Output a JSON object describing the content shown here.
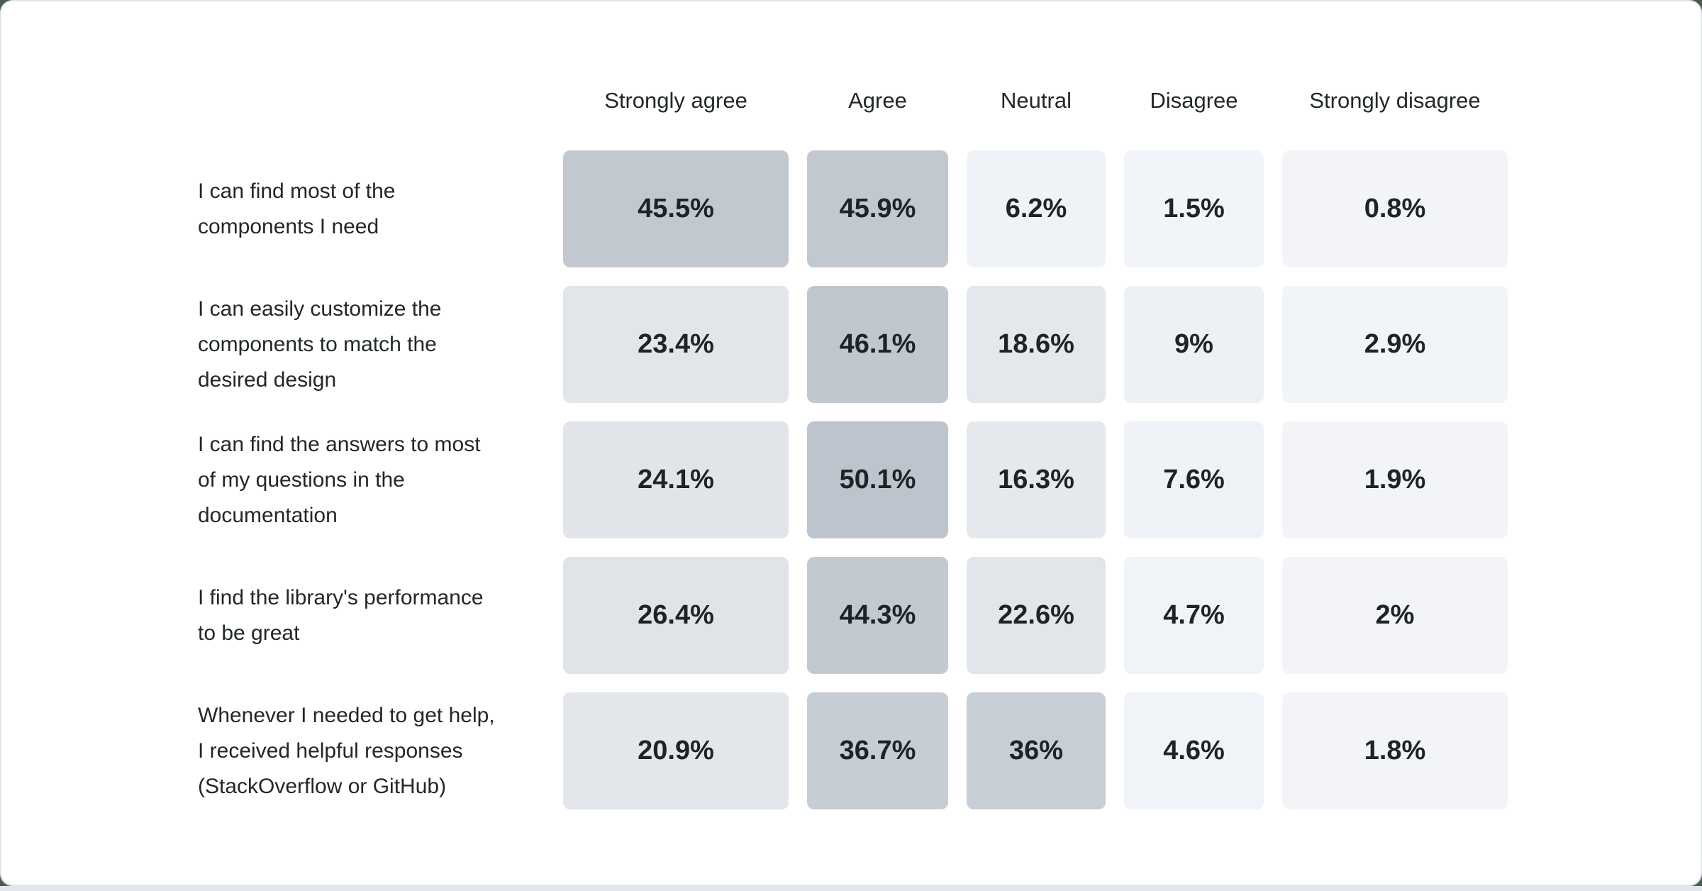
{
  "page": {
    "background_color": "#4a5c50",
    "card_background": "#ffffff",
    "card_border_color": "#e2e5e9",
    "bottom_band_color": "#e3e6ea",
    "text_color": "#21272a",
    "value_text_color": "#1e2326"
  },
  "chart_data": {
    "type": "heatmap",
    "title": "",
    "legend_position": "none",
    "grid": false,
    "columns": [
      "Strongly agree",
      "Agree",
      "Neutral",
      "Disagree",
      "Strongly disagree"
    ],
    "color_scale": {
      "min_color": "#f2f5f8",
      "max_color": "#bdc4cd",
      "domain": [
        0,
        50.1
      ]
    },
    "rows": [
      {
        "question": "I can find most of the components I need",
        "question_lines": [
          "I can find most of the",
          "components I need"
        ],
        "values": [
          45.5,
          45.9,
          6.2,
          1.5,
          0.8
        ],
        "labels": [
          "45.5%",
          "45.9%",
          "6.2%",
          "1.5%",
          "0.8%"
        ],
        "colors": [
          "#c1c8d0",
          "#c1c8d0",
          "#eff2f6",
          "#f1f4f8",
          "#f2f4f8"
        ]
      },
      {
        "question": "I can easily customize the components to match the desired design",
        "question_lines": [
          "I can easily customize the",
          "components to match the",
          "desired design"
        ],
        "values": [
          23.4,
          46.1,
          18.6,
          9,
          2.9
        ],
        "labels": [
          "23.4%",
          "46.1%",
          "18.6%",
          "9%",
          "2.9%"
        ],
        "colors": [
          "#e2e5ea",
          "#c0c7cf",
          "#e4e7ec",
          "#edf1f5",
          "#f1f4f8"
        ]
      },
      {
        "question": "I can find the answers to most of my questions in the documentation",
        "question_lines": [
          "I can find the answers to most",
          "of my questions in the",
          "documentation"
        ],
        "values": [
          24.1,
          50.1,
          16.3,
          7.6,
          1.9
        ],
        "labels": [
          "24.1%",
          "50.1%",
          "16.3%",
          "7.6%",
          "1.9%"
        ],
        "colors": [
          "#e1e5ea",
          "#bdc4cd",
          "#e5e8ed",
          "#eff2f6",
          "#f2f4f8"
        ]
      },
      {
        "question": "I find the library's performance to be great",
        "question_lines": [
          "I find the library's performance",
          "to be great"
        ],
        "values": [
          26.4,
          44.3,
          22.6,
          4.7,
          2
        ],
        "labels": [
          "26.4%",
          "44.3%",
          "22.6%",
          "4.7%",
          "2%"
        ],
        "colors": [
          "#e0e4e9",
          "#c2c9d1",
          "#e2e6eb",
          "#f0f3f7",
          "#f2f4f8"
        ]
      },
      {
        "question": "Whenever I needed to get help, I received helpful responses (StackOverflow or GitHub)",
        "question_lines": [
          "Whenever I needed to get help,",
          "I received helpful responses",
          "(StackOverflow or GitHub)"
        ],
        "values": [
          20.9,
          36.7,
          36,
          4.6,
          1.8
        ],
        "labels": [
          "20.9%",
          "36.7%",
          "36%",
          "4.6%",
          "1.8%"
        ],
        "colors": [
          "#e3e7eb",
          "#c7cdd5",
          "#c8ced6",
          "#f0f3f7",
          "#f2f4f8"
        ]
      }
    ]
  }
}
